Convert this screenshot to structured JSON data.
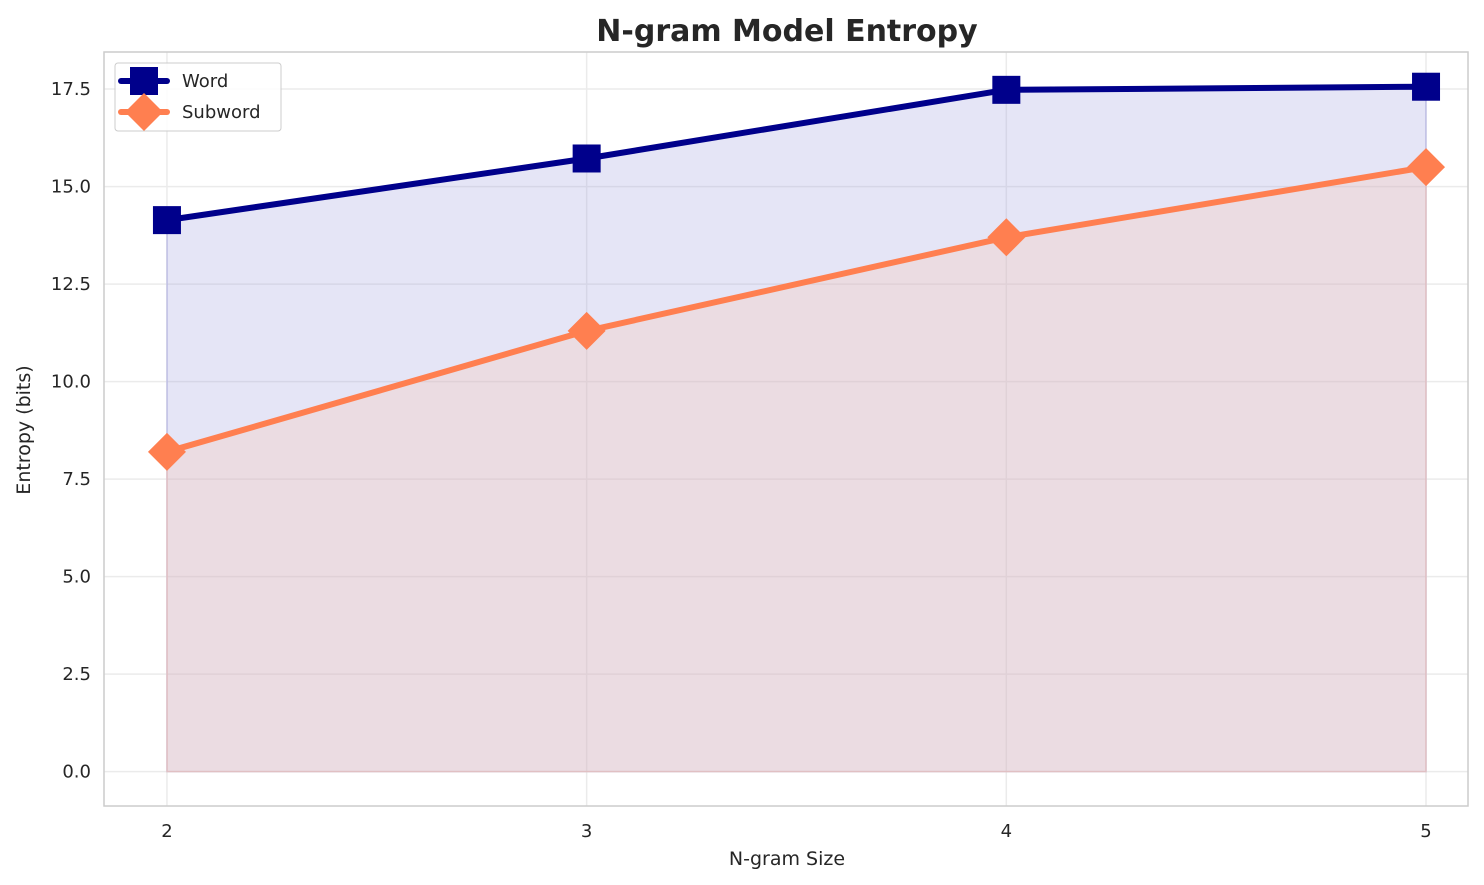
{
  "chart_data": {
    "type": "line",
    "title": "N-gram Model Entropy",
    "xlabel": "N-gram Size",
    "ylabel": "Entropy (bits)",
    "x": [
      2,
      3,
      4,
      5
    ],
    "x_tick_labels": [
      "2",
      "3",
      "4",
      "5"
    ],
    "y_ticks": [
      0.0,
      2.5,
      5.0,
      7.5,
      10.0,
      12.5,
      15.0,
      17.5
    ],
    "y_tick_labels": [
      "0.0",
      "2.5",
      "5.0",
      "7.5",
      "10.0",
      "12.5",
      "15.0",
      "17.5"
    ],
    "xlim": [
      1.85,
      5.1
    ],
    "ylim": [
      -0.88,
      18.45
    ],
    "grid": true,
    "legend_position": "top-left",
    "fill_to_zero": true,
    "series": [
      {
        "name": "Word",
        "values": [
          14.14,
          15.72,
          17.48,
          17.56
        ],
        "color": "#00008b",
        "fill_color": "#9999dd",
        "marker": "square"
      },
      {
        "name": "Subword",
        "values": [
          8.2,
          11.3,
          13.7,
          15.5
        ],
        "color": "#ff7f50",
        "fill_color": "#ffc2a8",
        "marker": "diamond"
      }
    ]
  }
}
